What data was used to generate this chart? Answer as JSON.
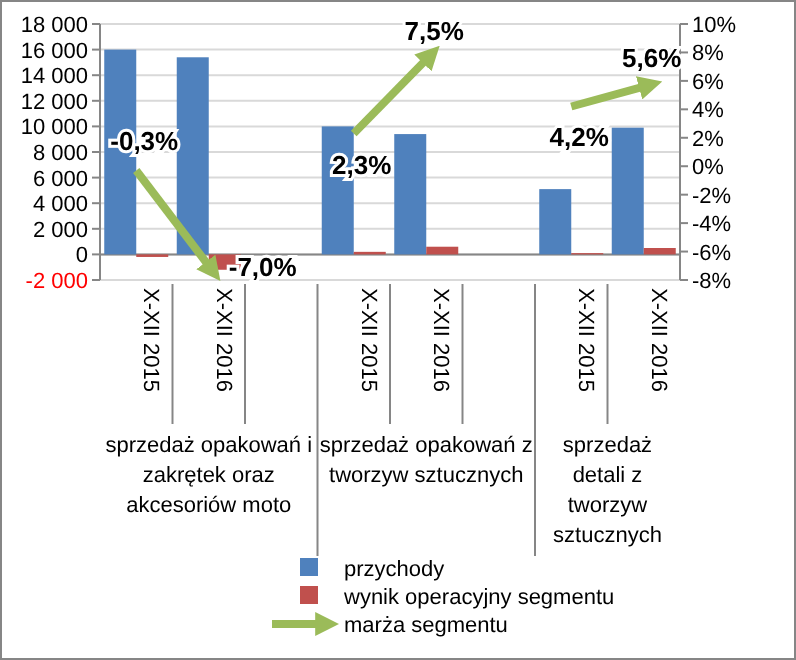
{
  "chart_data": {
    "type": "bar",
    "categories": [
      "X-XII 2015",
      "X-XII 2016",
      null,
      "X-XII 2015",
      "X-XII 2016",
      null,
      "X-XII 2015",
      "X-XII 2016"
    ],
    "annotations": [
      "sprzedaż opakowań i zakrętek oraz akcesoriów moto",
      "sprzedaż opakowań z tworzyw sztucznych",
      "sprzedaż detali z tworzyw sztucznych"
    ],
    "series": [
      {
        "name": "przychody",
        "color": "#4f81bd",
        "values": [
          16000,
          15400,
          null,
          10000,
          9400,
          null,
          5100,
          9900
        ]
      },
      {
        "name": "wynik operacyjny segmentu",
        "color": "#c0504d",
        "values": [
          -200,
          -1200,
          null,
          200,
          600,
          null,
          100,
          500
        ]
      },
      {
        "name": "marża segmentu",
        "type": "line",
        "axis": "y2",
        "color": "#9bbb59",
        "values": [
          -0.3,
          -7.0,
          null,
          2.3,
          7.5,
          null,
          4.2,
          5.6
        ],
        "value_labels": [
          "-0,3%",
          "-7,0%",
          null,
          "2,3%",
          "7,5%",
          null,
          "4,2%",
          "5,6%"
        ]
      }
    ],
    "ylim": [
      -2000,
      18000
    ],
    "yticks": [
      {
        "value": -2000,
        "label": "-2 000"
      },
      0,
      {
        "value": 2000,
        "label": "2 000"
      },
      {
        "value": 4000,
        "label": "4 000"
      },
      {
        "value": 6000,
        "label": "6 000"
      },
      {
        "value": 8000,
        "label": "8 000"
      },
      {
        "value": 10000,
        "label": "10 000"
      },
      {
        "value": 12000,
        "label": "12 000"
      },
      {
        "value": 14000,
        "label": "14 000"
      },
      {
        "value": 16000,
        "label": "16 000"
      },
      {
        "value": 18000,
        "label": "18 000"
      }
    ],
    "y2lim": [
      -8,
      10
    ],
    "y2ticks": [
      {
        "value": -8,
        "label": "-8%"
      },
      {
        "value": -6,
        "label": "-6%"
      },
      {
        "value": -4,
        "label": "-4%"
      },
      {
        "value": -2,
        "label": "-2%"
      },
      {
        "value": 0,
        "label": "0%"
      },
      {
        "value": 2,
        "label": "2%"
      },
      {
        "value": 4,
        "label": "4%"
      },
      {
        "value": 6,
        "label": "6%"
      },
      {
        "value": 8,
        "label": "8%"
      },
      {
        "value": 10,
        "label": "10%"
      }
    ],
    "grid": "y",
    "legend": "bottom",
    "marker": "none",
    "line_style": "solid"
  }
}
